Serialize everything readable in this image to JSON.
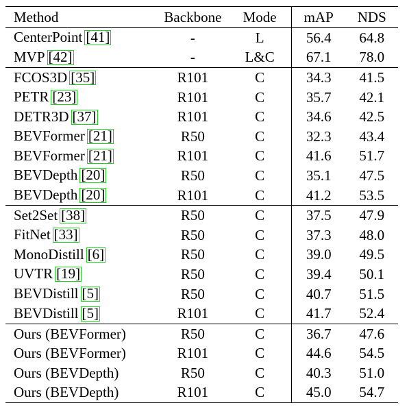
{
  "table": {
    "headers": {
      "method": "Method",
      "backbone": "Backbone",
      "mode": "Mode",
      "map": "mAP",
      "nds": "NDS"
    },
    "groups": [
      {
        "rows": [
          {
            "method": "CenterPoint",
            "cite": "[41]",
            "backbone": "-",
            "mode": "L",
            "map": "56.4",
            "nds": "64.8"
          },
          {
            "method": "MVP",
            "cite": "[42]",
            "backbone": "-",
            "mode": "L&C",
            "map": "67.1",
            "nds": "78.0"
          }
        ]
      },
      {
        "rows": [
          {
            "method": "FCOS3D",
            "cite": "[35]",
            "backbone": "R101",
            "mode": "C",
            "map": "34.3",
            "nds": "41.5"
          },
          {
            "method": "PETR",
            "cite": "[23]",
            "backbone": "R101",
            "mode": "C",
            "map": "35.7",
            "nds": "42.1"
          },
          {
            "method": "DETR3D",
            "cite": "[37]",
            "backbone": "R101",
            "mode": "C",
            "map": "34.6",
            "nds": "42.5"
          },
          {
            "method": "BEVFormer",
            "cite": "[21]",
            "backbone": "R50",
            "mode": "C",
            "map": "32.3",
            "nds": "43.4"
          },
          {
            "method": "BEVFormer",
            "cite": "[21]",
            "backbone": "R101",
            "mode": "C",
            "map": "41.6",
            "nds": "51.7"
          },
          {
            "method": "BEVDepth",
            "cite": "[20]",
            "backbone": "R50",
            "mode": "C",
            "map": "35.1",
            "nds": "47.5"
          },
          {
            "method": "BEVDepth",
            "cite": "[20]",
            "backbone": "R101",
            "mode": "C",
            "map": "41.2",
            "nds": "53.5"
          }
        ]
      },
      {
        "rows": [
          {
            "method": "Set2Set",
            "cite": "[38]",
            "backbone": "R50",
            "mode": "C",
            "map": "37.5",
            "nds": "47.9"
          },
          {
            "method": "FitNet",
            "cite": "[33]",
            "backbone": "R50",
            "mode": "C",
            "map": "37.3",
            "nds": "48.0"
          },
          {
            "method": "MonoDistill",
            "cite": "[6]",
            "backbone": "R50",
            "mode": "C",
            "map": "39.0",
            "nds": "49.5"
          },
          {
            "method": "UVTR",
            "cite": "[19]",
            "backbone": "R50",
            "mode": "C",
            "map": "39.4",
            "nds": "50.1"
          },
          {
            "method": "BEVDistill",
            "cite": "[5]",
            "backbone": "R50",
            "mode": "C",
            "map": "40.7",
            "nds": "51.5"
          },
          {
            "method": "BEVDistill",
            "cite": "[5]",
            "backbone": "R101",
            "mode": "C",
            "map": "41.7",
            "nds": "52.4"
          }
        ]
      },
      {
        "rows": [
          {
            "method": "Ours (BEVFormer)",
            "cite": "",
            "backbone": "R50",
            "mode": "C",
            "map": "36.7",
            "nds": "47.6"
          },
          {
            "method": "Ours (BEVFormer)",
            "cite": "",
            "backbone": "R101",
            "mode": "C",
            "map": "44.6",
            "nds": "54.5"
          },
          {
            "method": "Ours (BEVDepth)",
            "cite": "",
            "backbone": "R50",
            "mode": "C",
            "map": "40.3",
            "nds": "51.0"
          },
          {
            "method": "Ours (BEVDepth)",
            "cite": "",
            "backbone": "R101",
            "mode": "C",
            "map": "45.0",
            "nds": "54.7",
            "bold": true
          }
        ]
      }
    ],
    "cite_box_color": "#1fd11f"
  }
}
